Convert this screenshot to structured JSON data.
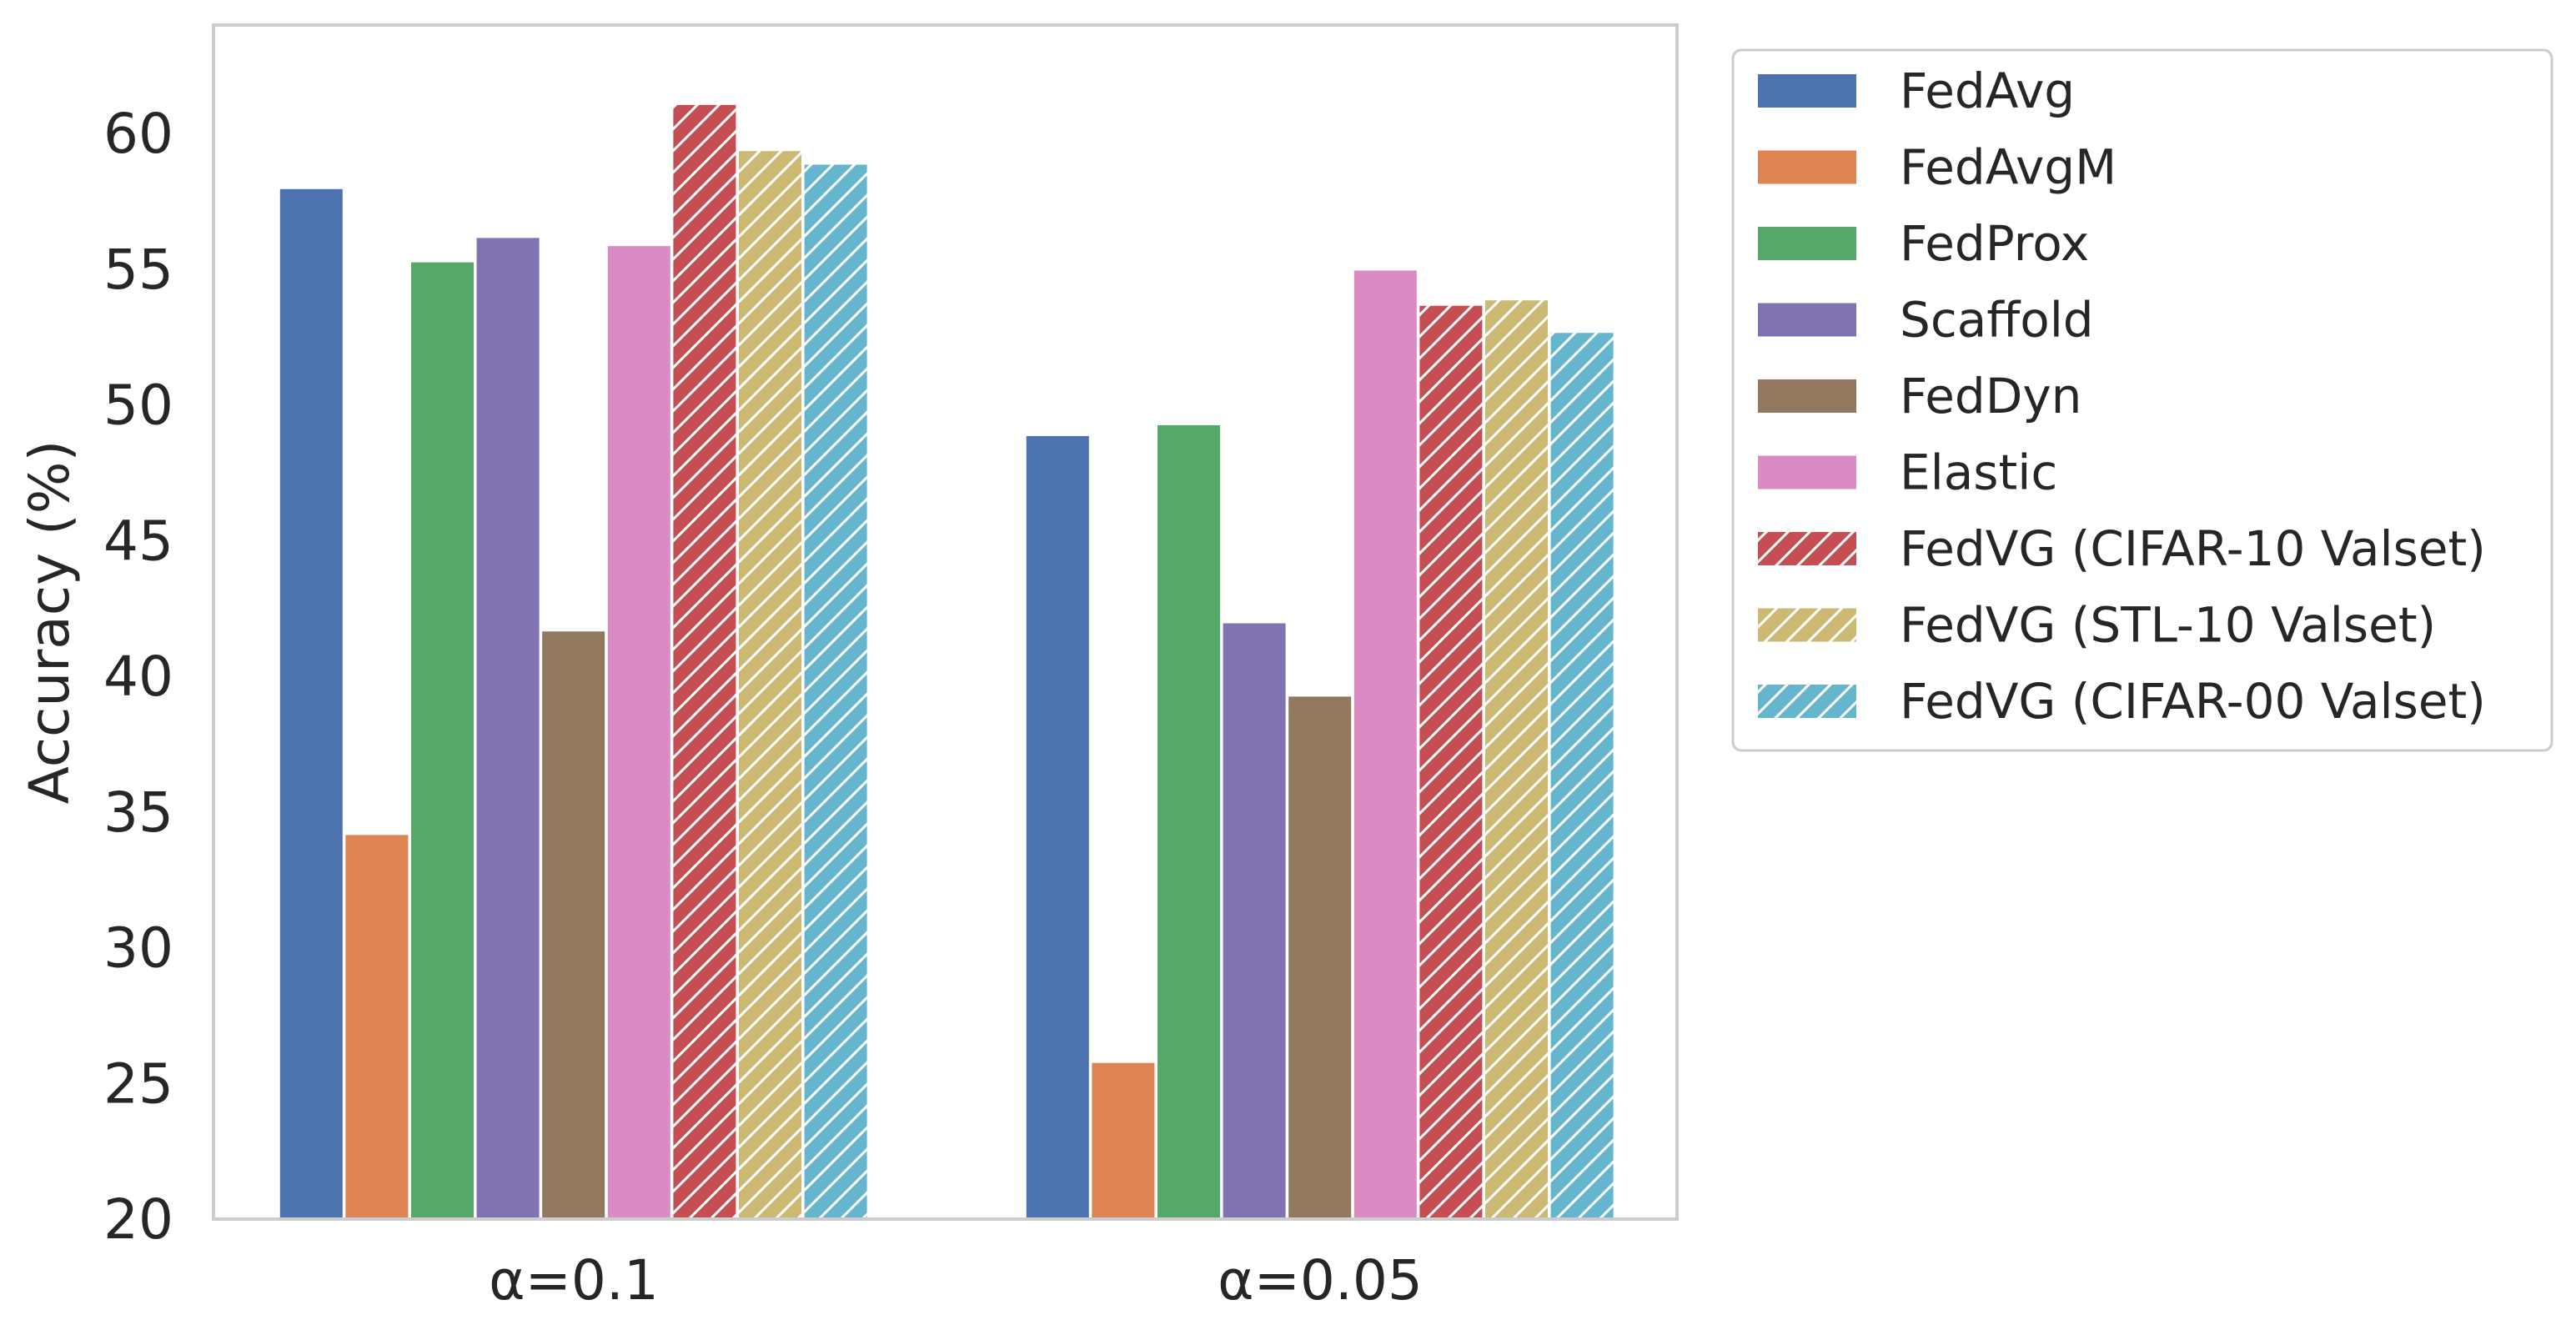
{
  "chart_data": {
    "type": "bar",
    "title": "",
    "xlabel": "",
    "ylabel": "Accuracy (%)",
    "ylim": [
      20,
      64
    ],
    "yticks": [
      20,
      25,
      30,
      35,
      40,
      45,
      50,
      55,
      60
    ],
    "grid": false,
    "legend_position": "outside-right",
    "categories": [
      "α=0.1",
      "α=0.05"
    ],
    "series": [
      {
        "name": "FedAvg",
        "values": [
          58.0,
          48.9
        ],
        "color": "#4c72b0",
        "hatch": false
      },
      {
        "name": "FedAvgM",
        "values": [
          34.2,
          25.8
        ],
        "color": "#dd8452",
        "hatch": false
      },
      {
        "name": "FedProx",
        "values": [
          55.3,
          49.3
        ],
        "color": "#55a868",
        "hatch": false
      },
      {
        "name": "Scaffold",
        "values": [
          56.2,
          42.0
        ],
        "color": "#8172b3",
        "hatch": false
      },
      {
        "name": "FedDyn",
        "values": [
          41.7,
          39.3
        ],
        "color": "#937860",
        "hatch": false
      },
      {
        "name": "Elastic",
        "values": [
          55.9,
          55.0
        ],
        "color": "#da8bc3",
        "hatch": false
      },
      {
        "name": "FedVG (CIFAR-10 Valset)",
        "values": [
          61.1,
          53.7
        ],
        "color": "#c44e52",
        "hatch": true
      },
      {
        "name": "FedVG (STL-10 Valset)",
        "values": [
          59.4,
          53.9
        ],
        "color": "#ccb974",
        "hatch": true
      },
      {
        "name": "FedVG (CIFAR-00 Valset)",
        "values": [
          58.9,
          52.7
        ],
        "color": "#64b5cd",
        "hatch": true
      }
    ]
  }
}
